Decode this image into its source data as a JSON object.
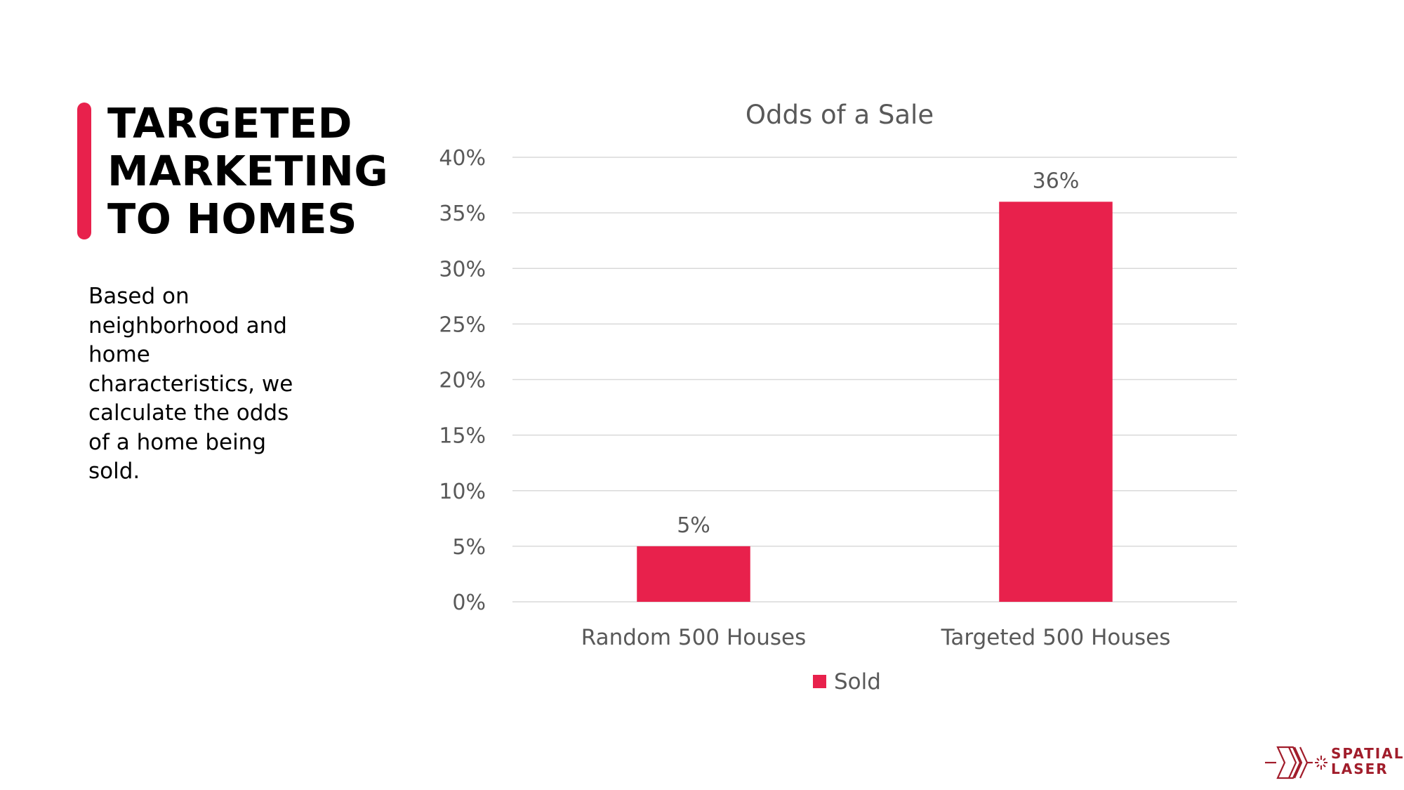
{
  "slide": {
    "title_lines": [
      "TARGETED",
      "MARKETING",
      "TO HOMES"
    ],
    "description_lines": [
      "Based on",
      "neighborhood and",
      "home",
      "characteristics, we",
      "calculate the odds",
      "of a home being",
      "sold."
    ],
    "accent_color": "#E8214C"
  },
  "chart_data": {
    "type": "bar",
    "title": "Odds of a Sale",
    "categories": [
      "Random 500 Houses",
      "Targeted 500 Houses"
    ],
    "series": [
      {
        "name": "Sold",
        "values": [
          5,
          36
        ],
        "color": "#E8214C"
      }
    ],
    "data_labels": [
      "5%",
      "36%"
    ],
    "ylim": [
      0,
      40
    ],
    "yticks": [
      "0%",
      "5%",
      "10%",
      "15%",
      "20%",
      "25%",
      "30%",
      "35%",
      "40%"
    ],
    "xlabel": "",
    "ylabel": "",
    "grid": true,
    "legend_position": "bottom"
  },
  "logo": {
    "text_lines": [
      "SPATIAL",
      "LASER"
    ],
    "icon": "chevron-arrows-icon",
    "color": "#A11D2B"
  }
}
